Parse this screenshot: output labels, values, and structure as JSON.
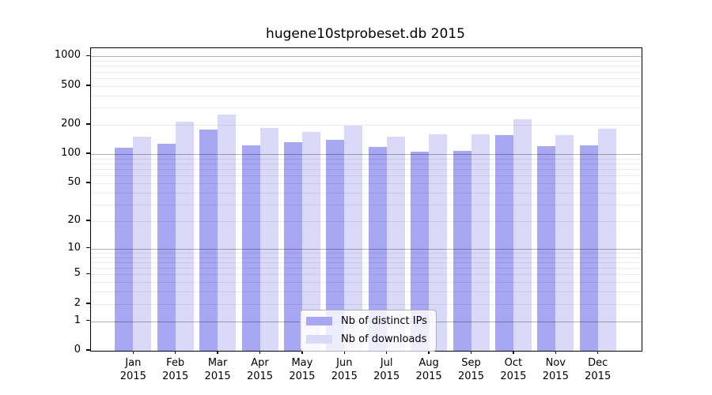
{
  "figure": {
    "title": "hugene10stprobeset.db 2015"
  },
  "legend": {
    "items": [
      {
        "label": "Nb of distinct IPs",
        "color": "#a7a7f3"
      },
      {
        "label": "Nb of downloads",
        "color": "#dadaf8"
      }
    ]
  },
  "colors": {
    "distinct_ips": "#a7a7f3",
    "downloads": "#dadaf8",
    "major_grid": "rgba(0,0,0,0.30)",
    "minor_grid": "rgba(0,0,0,0.08)",
    "axis": "#000000",
    "legend_border": "#b0b0b0",
    "legend_bg": "rgba(255,255,255,0.8)"
  },
  "chart_data": {
    "type": "bar",
    "title": "hugene10stprobeset.db 2015",
    "categories": [
      "Jan",
      "Feb",
      "Mar",
      "Apr",
      "May",
      "Jun",
      "Jul",
      "Aug",
      "Sep",
      "Oct",
      "Nov",
      "Dec"
    ],
    "year_label": "2015",
    "series": [
      {
        "name": "Nb of distinct IPs",
        "color": "#a7a7f3",
        "values": [
          117,
          128,
          178,
          123,
          132,
          140,
          118,
          106,
          109,
          156,
          120,
          124
        ]
      },
      {
        "name": "Nb of downloads",
        "color": "#dadaf8",
        "values": [
          150,
          214,
          255,
          185,
          170,
          196,
          151,
          160,
          160,
          227,
          156,
          182
        ]
      }
    ],
    "xlabel": "",
    "ylabel": "",
    "y_scale": "log(1+x)",
    "y_ticks": [
      0,
      1,
      2,
      5,
      10,
      20,
      50,
      100,
      200,
      500,
      1000
    ],
    "ylim": [
      0,
      1214
    ],
    "grid": true,
    "legend_position": "lower center inside"
  }
}
